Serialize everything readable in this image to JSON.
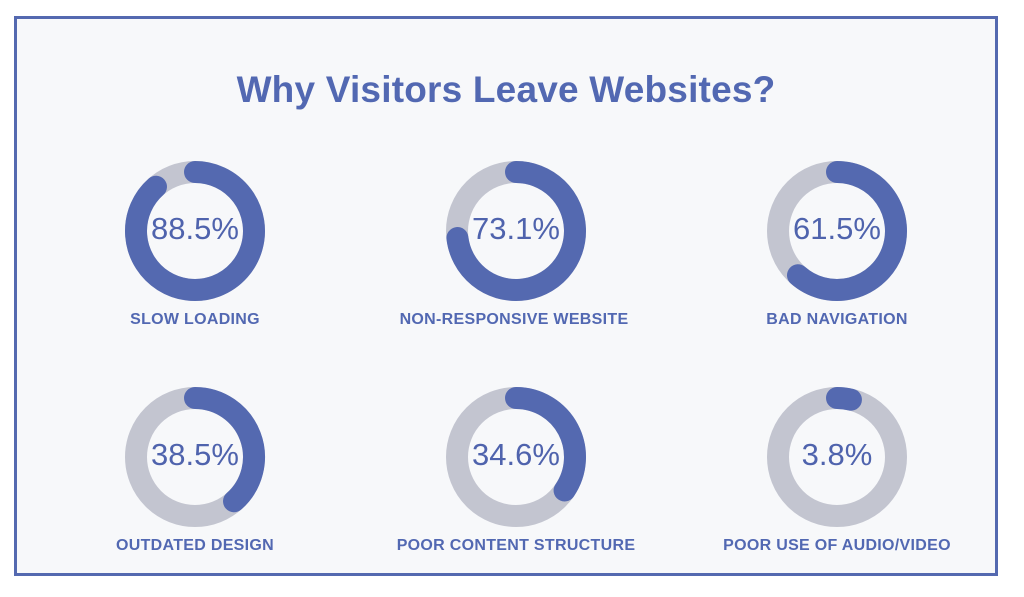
{
  "chart_data": {
    "type": "donut",
    "title": "Why Visitors Leave Websites?",
    "items": [
      {
        "label": "SLOW LOADING",
        "value": 88.5,
        "display": "88.5%"
      },
      {
        "label": "NON-RESPONSIVE WEBSITE",
        "value": 73.1,
        "display": "73.1%"
      },
      {
        "label": "BAD NAVIGATION",
        "value": 61.5,
        "display": "61.5%"
      },
      {
        "label": "OUTDATED DESIGN",
        "value": 38.5,
        "display": "38.5%"
      },
      {
        "label": "POOR CONTENT STRUCTURE",
        "value": 34.6,
        "display": "34.6%"
      },
      {
        "label": "POOR USE OF AUDIO/VIDEO",
        "value": 3.8,
        "display": "3.8%"
      }
    ],
    "max": 100
  },
  "colors": {
    "accent": "#5469b0",
    "track": "#c3c5d0",
    "text": "#5268b2",
    "background": "#f7f8fa"
  }
}
